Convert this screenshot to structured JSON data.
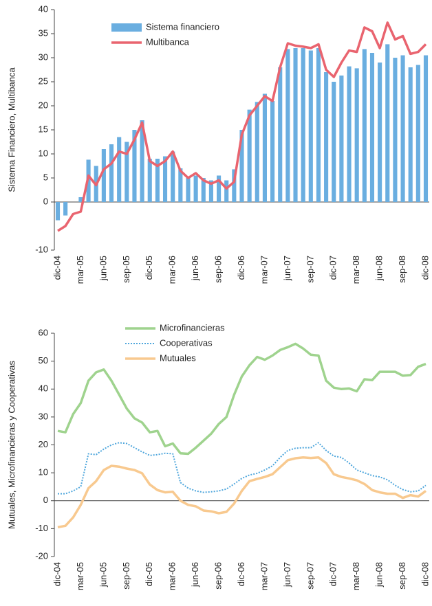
{
  "chart_data": [
    {
      "type": "combo",
      "ylabel": "Sistema Financiero, Multibanca",
      "categories": [
        "dic-04",
        null,
        null,
        "mar-05",
        null,
        null,
        "jun-05",
        null,
        null,
        "sep-05",
        null,
        null,
        "dic-05",
        null,
        null,
        "mar-06",
        null,
        null,
        "jun-06",
        null,
        null,
        "sep-06",
        null,
        null,
        "dic-06",
        null,
        null,
        "mar-07",
        null,
        null,
        "jun-07",
        null,
        null,
        "sep-07",
        null,
        null,
        "dic-07",
        null,
        null,
        "mar-08",
        null,
        null,
        "jun-08",
        null,
        null,
        "sep-08",
        null,
        null,
        "dic-08"
      ],
      "ylim": [
        -10,
        40
      ],
      "yticks": [
        -10,
        0,
        5,
        10,
        15,
        20,
        25,
        30,
        35,
        40
      ],
      "series": [
        {
          "name": "Sistema financiero",
          "type": "bar",
          "color": "#6aaee0",
          "values": [
            -3.8,
            -2.8,
            0,
            1,
            8.8,
            7.5,
            11,
            12,
            13.5,
            12.5,
            15,
            17,
            9,
            9,
            9.5,
            10.5,
            7,
            5,
            5.5,
            5,
            4.5,
            5.5,
            4.5,
            6.8,
            15,
            19.2,
            20.8,
            22.5,
            21,
            28,
            31.8,
            32,
            32,
            31.5,
            32,
            27,
            25,
            26.3,
            28.2,
            27.8,
            31.8,
            31,
            29,
            32.8,
            30,
            30.5,
            28,
            28.5,
            30.5
          ]
        },
        {
          "name": "Multibanca",
          "type": "line",
          "color": "#e9646f",
          "values": [
            -6,
            -5,
            -2.5,
            -2,
            5.5,
            3.5,
            6.8,
            8,
            10.5,
            10,
            13,
            16.5,
            8.5,
            7.5,
            8.5,
            10.5,
            6.5,
            5,
            6,
            4.5,
            3.8,
            4.5,
            2.8,
            4.2,
            14,
            18,
            20,
            22,
            21,
            28,
            33,
            32.5,
            32.3,
            32,
            32.8,
            27.5,
            26,
            29,
            31.5,
            31.2,
            36.3,
            35.5,
            32,
            37.3,
            33.8,
            34.5,
            30.8,
            31.2,
            32.8
          ]
        }
      ]
    },
    {
      "type": "line",
      "ylabel": "Mutuales, Microfinancieras y Cooperativas",
      "categories": [
        "dic-04",
        null,
        null,
        "mar-05",
        null,
        null,
        "jun-05",
        null,
        null,
        "sep-05",
        null,
        null,
        "dic-05",
        null,
        null,
        "mar-06",
        null,
        null,
        "jun-06",
        null,
        null,
        "sep-06",
        null,
        null,
        "dic-06",
        null,
        null,
        "mar-07",
        null,
        null,
        "jun-07",
        null,
        null,
        "sep-07",
        null,
        null,
        "dic-07",
        null,
        null,
        "mar-08",
        null,
        null,
        "jun-08",
        null,
        null,
        "sep-08",
        null,
        null,
        "dic-08"
      ],
      "ylim": [
        -20,
        60
      ],
      "yticks": [
        -20,
        -10,
        0,
        10,
        20,
        30,
        40,
        50,
        60
      ],
      "series": [
        {
          "name": "Microfinancieras",
          "color": "#9fd38e",
          "style": "solid",
          "values": [
            25,
            24.5,
            31,
            35,
            43,
            46,
            47,
            43,
            38,
            33,
            29.5,
            28,
            24.5,
            25,
            19.5,
            20.5,
            17,
            16.8,
            19,
            21.5,
            24,
            27.5,
            30,
            38,
            44.5,
            48.5,
            51.5,
            50.5,
            52,
            54,
            55,
            56.2,
            54.5,
            52.3,
            52,
            43,
            40.5,
            40,
            40.2,
            39.2,
            43.5,
            43.2,
            46.2,
            46.2,
            46.2,
            44.8,
            45,
            48,
            49
          ]
        },
        {
          "name": "Cooperativas",
          "color": "#4ea6dc",
          "style": "dotted",
          "values": [
            2.5,
            2.5,
            3.5,
            5,
            16.8,
            16.5,
            18.5,
            20,
            20.8,
            20.5,
            19,
            17.5,
            16.2,
            16.5,
            17,
            16.8,
            6.5,
            4.5,
            3.5,
            3,
            3.2,
            3.5,
            4.2,
            6,
            8,
            9.2,
            9.8,
            11,
            12.5,
            15.5,
            18,
            18.8,
            19,
            19,
            20.8,
            18,
            16,
            15.5,
            13.5,
            11,
            10,
            9,
            8.5,
            7.5,
            5.5,
            4,
            3.2,
            3.5,
            5.5
          ]
        },
        {
          "name": "Mutuales",
          "color": "#f8c98f",
          "style": "solid",
          "values": [
            -9.5,
            -9,
            -6,
            -1.5,
            4.5,
            7,
            11,
            12.5,
            12.2,
            11.5,
            11,
            9.8,
            5.8,
            3.8,
            3,
            3.2,
            0,
            -1.5,
            -2,
            -3.5,
            -3.8,
            -4.5,
            -4,
            -1,
            3.5,
            7,
            7.8,
            8.5,
            9.5,
            12,
            14.5,
            15.2,
            15.5,
            15.3,
            15.5,
            13.5,
            9.5,
            8.5,
            8,
            7.3,
            6,
            3.8,
            3,
            2.5,
            2.5,
            1,
            2,
            1.5,
            3.5
          ]
        }
      ]
    }
  ]
}
